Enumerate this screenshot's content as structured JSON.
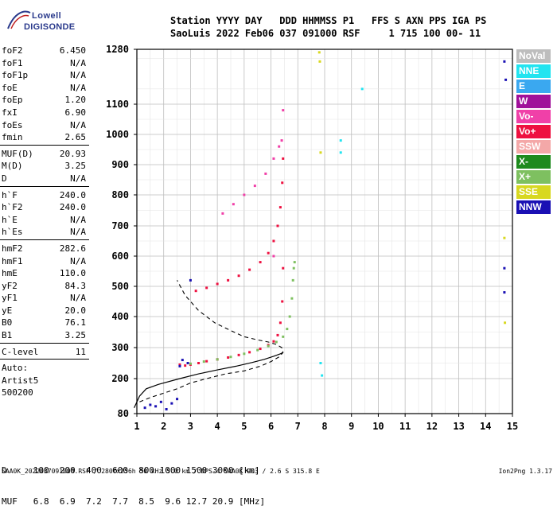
{
  "logo": {
    "line1": "Lowell",
    "line2": "DIGISONDE"
  },
  "header": {
    "row1": "Station YYYY DAY   DDD HHMMSS P1   FFS S AXN PPS IGA PS",
    "row2": "SaoLuis 2022 Feb06 037 091000 RSF     1 715 100 00- 11"
  },
  "params": [
    {
      "label": "foF2",
      "value": "6.450"
    },
    {
      "label": "foF1",
      "value": "N/A"
    },
    {
      "label": "foF1p",
      "value": "N/A"
    },
    {
      "label": "foE",
      "value": "N/A"
    },
    {
      "label": "foEp",
      "value": "1.20"
    },
    {
      "label": "fxI",
      "value": "6.90"
    },
    {
      "label": "foEs",
      "value": "N/A"
    },
    {
      "label": "fmin",
      "value": "2.65"
    },
    {
      "sep": true
    },
    {
      "label": "MUF(D)",
      "value": "20.93"
    },
    {
      "label": "M(D)",
      "value": "3.25"
    },
    {
      "label": "D",
      "value": "N/A"
    },
    {
      "sep": true
    },
    {
      "label": "h`F",
      "value": "240.0"
    },
    {
      "label": "h`F2",
      "value": "240.0"
    },
    {
      "label": "h`E",
      "value": "N/A"
    },
    {
      "label": "h`Es",
      "value": "N/A"
    },
    {
      "sep": true
    },
    {
      "label": "hmF2",
      "value": "282.6"
    },
    {
      "label": "hmF1",
      "value": "N/A"
    },
    {
      "label": "hmE",
      "value": "110.0"
    },
    {
      "label": "yF2",
      "value": "84.3"
    },
    {
      "label": "yF1",
      "value": "N/A"
    },
    {
      "label": "yE",
      "value": "20.0"
    },
    {
      "label": "B0",
      "value": "76.1"
    },
    {
      "label": "B1",
      "value": "3.25"
    },
    {
      "sep": true
    },
    {
      "label": "C-level",
      "value": "11"
    },
    {
      "sep": true
    },
    {
      "plain": "Auto:"
    },
    {
      "plain": "Artist5"
    },
    {
      "plain": "500200"
    }
  ],
  "legend": [
    {
      "label": "NoVal",
      "color": "#bdbdbd"
    },
    {
      "label": "NNE",
      "color": "#22e4f0"
    },
    {
      "label": "E",
      "color": "#3aa8f0"
    },
    {
      "label": "W",
      "color": "#a0109a"
    },
    {
      "label": "Vo-",
      "color": "#f040a8"
    },
    {
      "label": "Vo+",
      "color": "#ee1040"
    },
    {
      "label": "SSW",
      "color": "#f4a8a8"
    },
    {
      "label": "X-",
      "color": "#1e8a1e"
    },
    {
      "label": "X+",
      "color": "#7ec060"
    },
    {
      "label": "SSE",
      "color": "#d8d820"
    },
    {
      "label": "NNW",
      "color": "#1a10b4"
    }
  ],
  "dmuf": {
    "row1": "D     100  200  400  600  800 1000 1500 3000 [km]",
    "row2": "MUF   6.8  6.9  7.2  7.7  8.5  9.6 12.7 20.9 [MHz]"
  },
  "footer": {
    "left": "SAA0K_2022037091000.RSF / 280fx256h 50 kHz 5.0 km / DPS-4 SAA0K 903 / 2.6 S 315.8 E",
    "right": "Ion2Png 1.3.17"
  },
  "chart_data": {
    "type": "scatter",
    "title": "",
    "xlabel": "",
    "ylabel": "",
    "xlim": [
      1,
      15
    ],
    "ylim": [
      80,
      1280
    ],
    "xticks": [
      1,
      2,
      3,
      4,
      5,
      6,
      7,
      8,
      9,
      10,
      11,
      12,
      13,
      14,
      15
    ],
    "yticks": [
      80,
      200,
      300,
      400,
      500,
      600,
      700,
      800,
      900,
      1000,
      1100,
      1280
    ],
    "grid": true,
    "profile_curve": {
      "x": [
        0.9,
        1.1,
        1.35,
        1.8,
        2.6,
        3.3,
        4.0,
        4.7,
        5.3,
        5.75,
        6.1,
        6.35,
        6.45
      ],
      "y": [
        100,
        140,
        165,
        180,
        200,
        215,
        228,
        240,
        252,
        262,
        272,
        280,
        284
      ]
    },
    "profile_dashed": {
      "x": [
        1.1,
        1.5,
        2.0,
        2.5,
        3.0,
        3.6,
        4.3,
        5.0,
        5.6,
        6.0,
        6.3,
        6.45,
        6.4,
        6.2,
        5.9,
        5.5,
        5.0,
        4.5,
        3.9,
        3.3,
        2.8,
        2.5
      ],
      "y": [
        120,
        135,
        150,
        165,
        185,
        200,
        215,
        225,
        240,
        255,
        270,
        284,
        300,
        310,
        318,
        325,
        335,
        355,
        380,
        420,
        470,
        520
      ]
    },
    "series": [
      {
        "name": "Vo+",
        "color": "#ee1040",
        "x": [
          2.6,
          2.8,
          3.0,
          3.3,
          3.6,
          4.0,
          4.4,
          4.8,
          5.2,
          5.6,
          5.9,
          6.1,
          6.25,
          6.35,
          6.42,
          6.45,
          3.2,
          3.6,
          4.0,
          4.4,
          4.8,
          5.2,
          5.6,
          5.9,
          6.1,
          6.25,
          6.35,
          6.42,
          6.45
        ],
        "y": [
          245,
          242,
          245,
          250,
          256,
          262,
          268,
          276,
          285,
          296,
          308,
          320,
          340,
          380,
          450,
          560,
          485,
          495,
          508,
          520,
          535,
          555,
          580,
          610,
          650,
          700,
          760,
          840,
          920
        ]
      },
      {
        "name": "X+",
        "color": "#7ec060",
        "x": [
          3.0,
          3.5,
          4.0,
          4.5,
          5.0,
          5.5,
          5.9,
          6.2,
          6.45,
          6.6,
          6.7,
          6.78,
          6.82,
          6.85,
          6.88
        ],
        "y": [
          248,
          255,
          262,
          270,
          280,
          292,
          305,
          318,
          335,
          360,
          400,
          460,
          520,
          560,
          580
        ]
      },
      {
        "name": "NNW",
        "color": "#1a10b4",
        "x": [
          1.3,
          1.5,
          1.7,
          1.9,
          2.1,
          2.3,
          2.5,
          2.6,
          2.7,
          2.9,
          3.0,
          14.7,
          14.7,
          14.7,
          14.75
        ],
        "y": [
          100,
          110,
          105,
          120,
          95,
          115,
          130,
          240,
          260,
          250,
          520,
          480,
          560,
          1240,
          1180
        ]
      },
      {
        "name": "Vo-",
        "color": "#f040a8",
        "x": [
          4.2,
          4.6,
          5.0,
          5.4,
          5.8,
          6.1,
          6.3,
          6.4,
          6.1,
          6.45
        ],
        "y": [
          740,
          770,
          800,
          830,
          870,
          920,
          960,
          980,
          600,
          1080
        ]
      },
      {
        "name": "NNE",
        "color": "#22e4f0",
        "x": [
          7.9,
          7.85,
          8.6,
          8.6,
          9.4
        ],
        "y": [
          210,
          250,
          940,
          980,
          1150
        ]
      },
      {
        "name": "SSE",
        "color": "#d8d820",
        "x": [
          7.8,
          7.82,
          7.85,
          14.7,
          14.72
        ],
        "y": [
          1270,
          1240,
          940,
          660,
          380
        ]
      }
    ]
  }
}
